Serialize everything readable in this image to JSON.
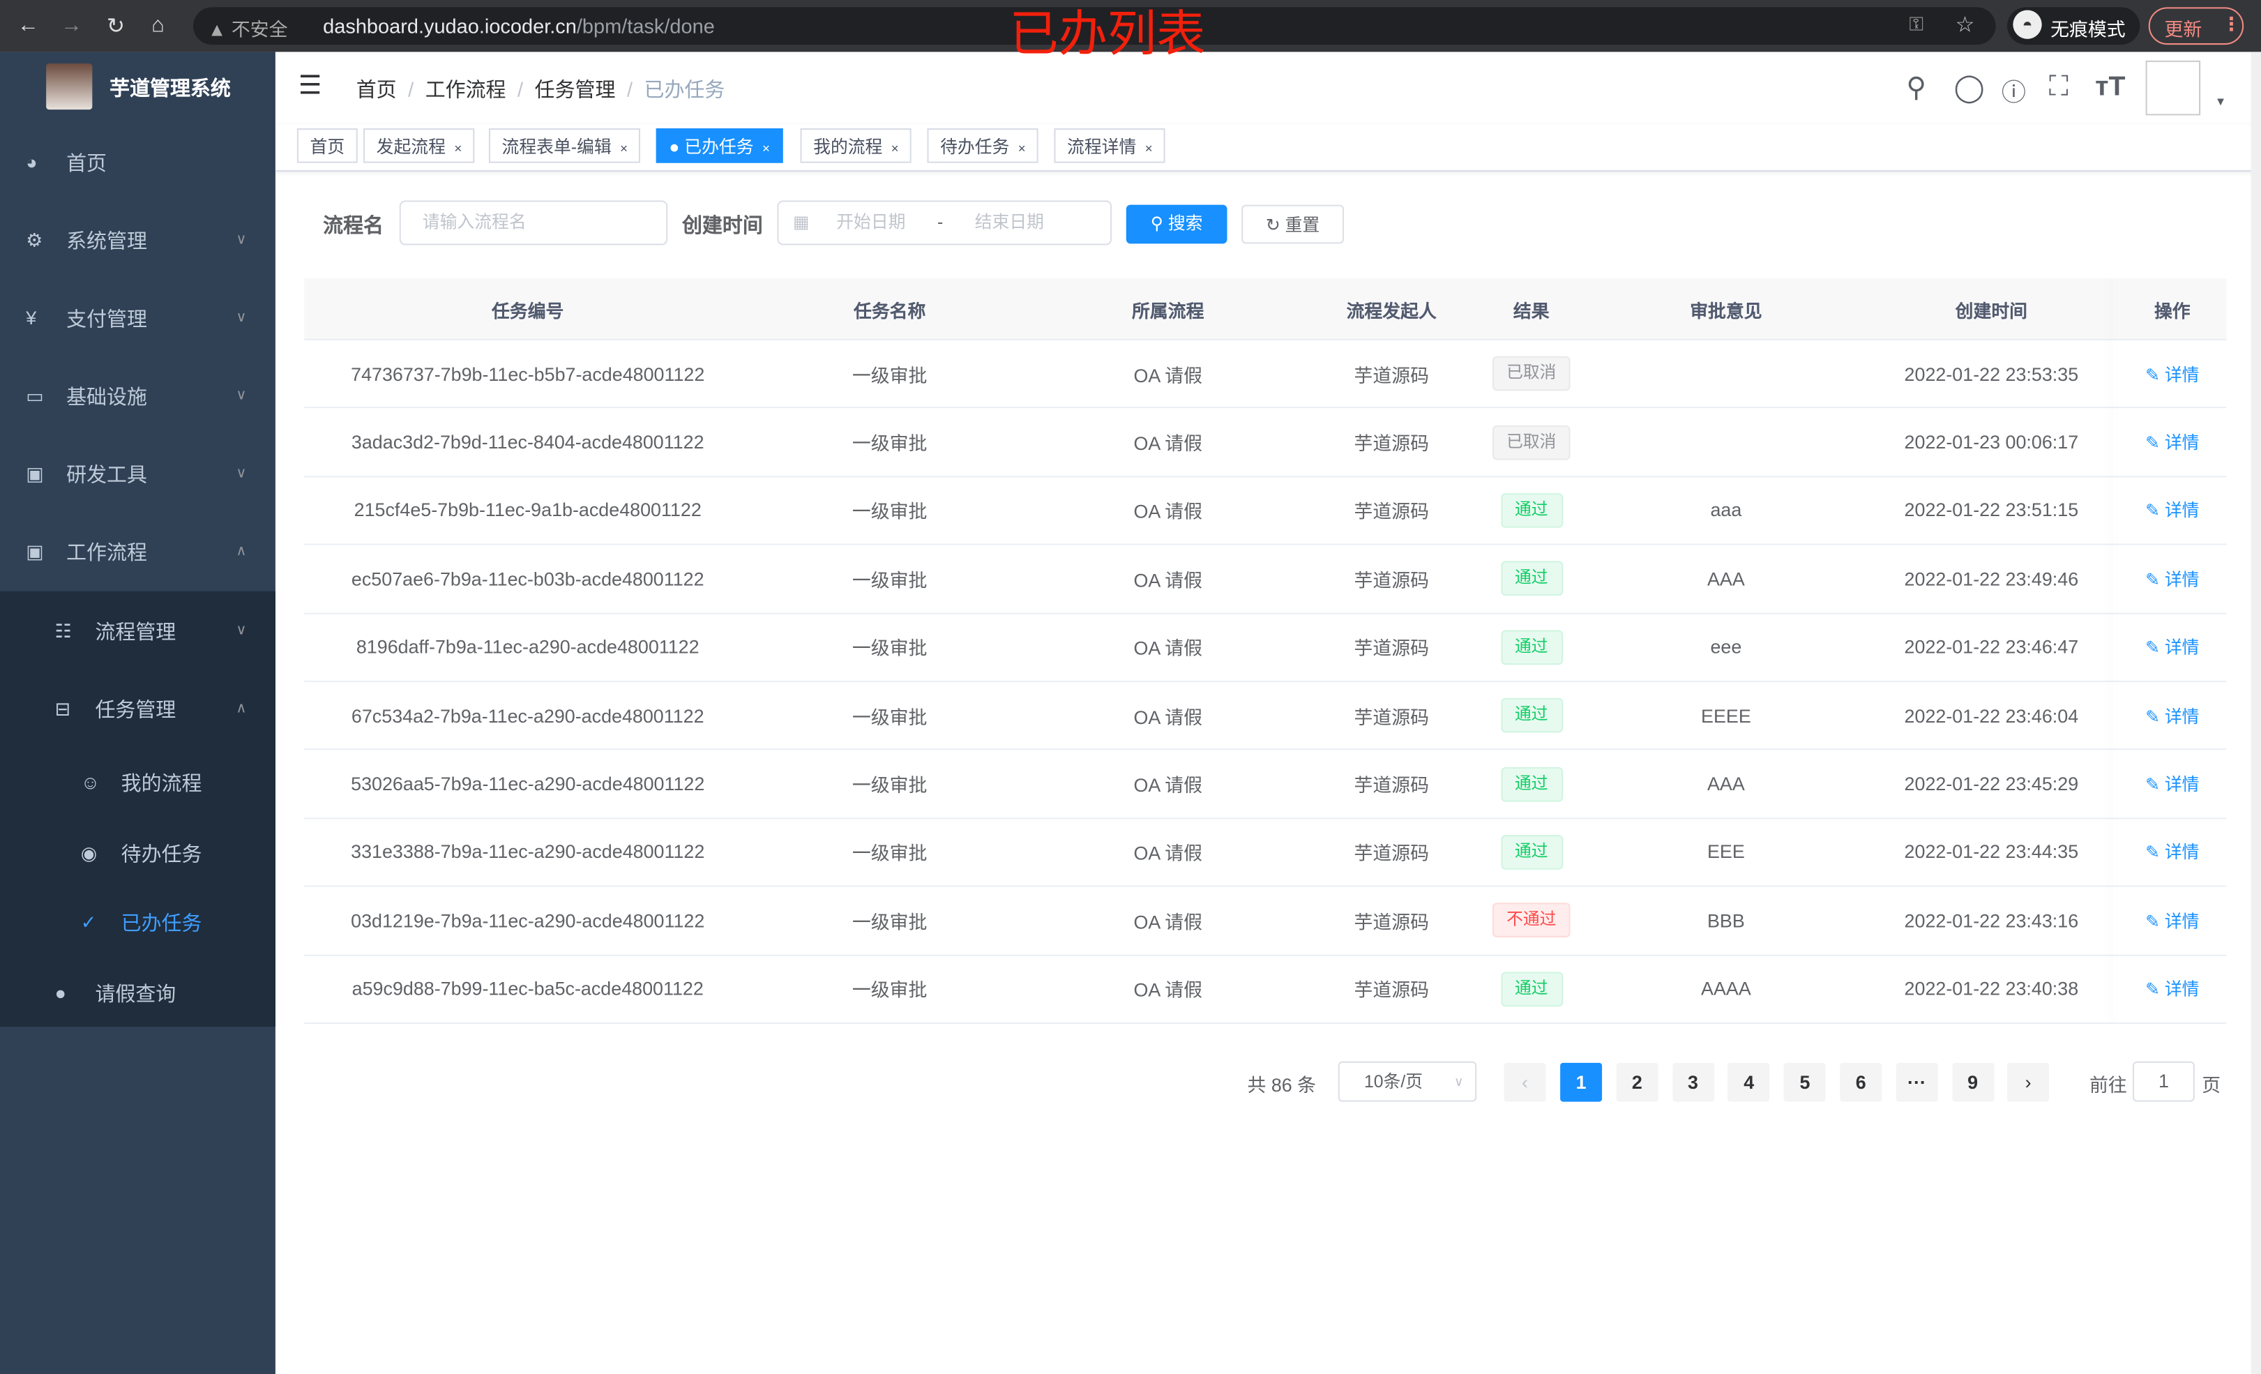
{
  "browser": {
    "security": "不安全",
    "url_host": "dashboard.yudao.iocoder.cn",
    "url_path": "/bpm/task/done",
    "incognito": "无痕模式",
    "update": "更新"
  },
  "annotation": "已办列表",
  "sidebar": {
    "title": "芋道管理系统",
    "items": [
      {
        "label": "首页",
        "icon": "dashboard-icon"
      },
      {
        "label": "系统管理",
        "icon": "gear-icon"
      },
      {
        "label": "支付管理",
        "icon": "yen-icon"
      },
      {
        "label": "基础设施",
        "icon": "monitor-icon"
      },
      {
        "label": "研发工具",
        "icon": "toolbox-icon"
      },
      {
        "label": "工作流程",
        "icon": "toolbox-icon"
      },
      {
        "label": "流程管理",
        "icon": "list-icon"
      },
      {
        "label": "任务管理",
        "icon": "tree-icon"
      },
      {
        "label": "我的流程",
        "icon": "user-icon"
      },
      {
        "label": "待办任务",
        "icon": "eye-icon"
      },
      {
        "label": "已办任务",
        "icon": "done-icon"
      },
      {
        "label": "请假查询",
        "icon": "person-icon"
      }
    ]
  },
  "breadcrumb": [
    "首页",
    "工作流程",
    "任务管理",
    "已办任务"
  ],
  "tags": [
    {
      "label": "首页"
    },
    {
      "label": "发起流程"
    },
    {
      "label": "流程表单-编辑"
    },
    {
      "label": "已办任务"
    },
    {
      "label": "我的流程"
    },
    {
      "label": "待办任务"
    },
    {
      "label": "流程详情"
    }
  ],
  "search": {
    "name_label": "流程名",
    "name_placeholder": "请输入流程名",
    "time_label": "创建时间",
    "start_placeholder": "开始日期",
    "range_sep": "-",
    "end_placeholder": "结束日期",
    "search_btn": "搜索",
    "reset_btn": "重置"
  },
  "table": {
    "headers": [
      "任务编号",
      "任务名称",
      "所属流程",
      "流程发起人",
      "结果",
      "审批意见",
      "创建时间",
      "操作"
    ],
    "rows": [
      {
        "id": "74736737-7b9b-11ec-b5b7-acde48001122",
        "name": "一级审批",
        "process": "OA 请假",
        "initiator": "芋道源码",
        "result": "已取消",
        "status": "cancel",
        "comment": "",
        "time": "2022-01-22 23:53:35",
        "action": "详情"
      },
      {
        "id": "3adac3d2-7b9d-11ec-8404-acde48001122",
        "name": "一级审批",
        "process": "OA 请假",
        "initiator": "芋道源码",
        "result": "已取消",
        "status": "cancel",
        "comment": "",
        "time": "2022-01-23 00:06:17",
        "action": "详情"
      },
      {
        "id": "215cf4e5-7b9b-11ec-9a1b-acde48001122",
        "name": "一级审批",
        "process": "OA 请假",
        "initiator": "芋道源码",
        "result": "通过",
        "status": "pass",
        "comment": "aaa",
        "time": "2022-01-22 23:51:15",
        "action": "详情"
      },
      {
        "id": "ec507ae6-7b9a-11ec-b03b-acde48001122",
        "name": "一级审批",
        "process": "OA 请假",
        "initiator": "芋道源码",
        "result": "通过",
        "status": "pass",
        "comment": "AAA",
        "time": "2022-01-22 23:49:46",
        "action": "详情"
      },
      {
        "id": "8196daff-7b9a-11ec-a290-acde48001122",
        "name": "一级审批",
        "process": "OA 请假",
        "initiator": "芋道源码",
        "result": "通过",
        "status": "pass",
        "comment": "eee",
        "time": "2022-01-22 23:46:47",
        "action": "详情"
      },
      {
        "id": "67c534a2-7b9a-11ec-a290-acde48001122",
        "name": "一级审批",
        "process": "OA 请假",
        "initiator": "芋道源码",
        "result": "通过",
        "status": "pass",
        "comment": "EEEE",
        "time": "2022-01-22 23:46:04",
        "action": "详情"
      },
      {
        "id": "53026aa5-7b9a-11ec-a290-acde48001122",
        "name": "一级审批",
        "process": "OA 请假",
        "initiator": "芋道源码",
        "result": "通过",
        "status": "pass",
        "comment": "AAA",
        "time": "2022-01-22 23:45:29",
        "action": "详情"
      },
      {
        "id": "331e3388-7b9a-11ec-a290-acde48001122",
        "name": "一级审批",
        "process": "OA 请假",
        "initiator": "芋道源码",
        "result": "通过",
        "status": "pass",
        "comment": "EEE",
        "time": "2022-01-22 23:44:35",
        "action": "详情"
      },
      {
        "id": "03d1219e-7b9a-11ec-a290-acde48001122",
        "name": "一级审批",
        "process": "OA 请假",
        "initiator": "芋道源码",
        "result": "不通过",
        "status": "reject",
        "comment": "BBB",
        "time": "2022-01-22 23:43:16",
        "action": "详情"
      },
      {
        "id": "a59c9d88-7b99-11ec-ba5c-acde48001122",
        "name": "一级审批",
        "process": "OA 请假",
        "initiator": "芋道源码",
        "result": "通过",
        "status": "pass",
        "comment": "AAAA",
        "time": "2022-01-22 23:40:38",
        "action": "详情"
      }
    ]
  },
  "pagination": {
    "total": "共 86 条",
    "page_size": "10条/页",
    "pages": [
      "1",
      "2",
      "3",
      "4",
      "5",
      "6",
      "···",
      "9"
    ],
    "current": "1",
    "goto_label": "前往",
    "goto_value": "1",
    "page_suffix": "页"
  },
  "colors": {
    "primary": "#1890ff",
    "sidebar": "#304156",
    "pass": "#13ce66",
    "reject": "#ff4949",
    "cancel": "#909399"
  }
}
